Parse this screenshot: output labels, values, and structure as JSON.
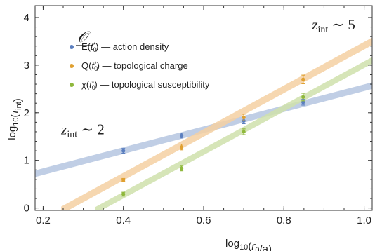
{
  "chart_data": {
    "type": "scatter",
    "xlabel": "log10(r0/a)",
    "ylabel": "log10(τint)",
    "xlim": [
      0.18,
      1.02
    ],
    "ylim": [
      -0.05,
      4.25
    ],
    "xticks": [
      0.2,
      0.4,
      0.6,
      0.8,
      1.0
    ],
    "xtick_labels": [
      "0.2",
      "0.4",
      "0.6",
      "0.8",
      "1.0"
    ],
    "yticks": [
      0,
      1,
      2,
      3,
      4
    ],
    "ytick_labels": [
      "0",
      "1",
      "2",
      "3",
      "4"
    ],
    "grid": false,
    "legend_title": "𝒪",
    "legend_placement": "top-left",
    "annotations": [
      {
        "text": "z_int ∼ 2",
        "x": 0.245,
        "y": 1.55
      },
      {
        "text": "z_int ∼ 5",
        "x": 0.87,
        "y": 3.75
      }
    ],
    "series": [
      {
        "name": "E(t0*) — action density",
        "color": "#5b7fbf",
        "band_color": "#b5c6e0",
        "points": [
          {
            "x": 0.4,
            "y": 1.2,
            "err": 0.05
          },
          {
            "x": 0.545,
            "y": 1.52,
            "err": 0.05
          },
          {
            "x": 0.7,
            "y": 1.83,
            "err": 0.06
          },
          {
            "x": 0.848,
            "y": 2.22,
            "err": 0.06
          }
        ],
        "fit": {
          "x0": 0.18,
          "y0": 0.72,
          "x1": 1.02,
          "y1": 2.57,
          "band": 0.07
        }
      },
      {
        "name": "Q(t0*) — topological charge",
        "color": "#e0a030",
        "band_color": "#f4d0a2",
        "points": [
          {
            "x": 0.4,
            "y": 0.59,
            "err": 0.03
          },
          {
            "x": 0.545,
            "y": 1.28,
            "err": 0.06
          },
          {
            "x": 0.7,
            "y": 1.9,
            "err": 0.07
          },
          {
            "x": 0.848,
            "y": 2.7,
            "err": 0.09
          }
        ],
        "fit": {
          "x0": 0.245,
          "y0": -0.05,
          "x1": 1.02,
          "y1": 3.5,
          "band": 0.08
        }
      },
      {
        "name": "χ(t0*) — topological susceptibility",
        "color": "#8fb83c",
        "band_color": "#cfe0ab",
        "points": [
          {
            "x": 0.4,
            "y": 0.29,
            "err": 0.04
          },
          {
            "x": 0.545,
            "y": 0.83,
            "err": 0.05
          },
          {
            "x": 0.7,
            "y": 1.6,
            "err": 0.06
          },
          {
            "x": 0.848,
            "y": 2.33,
            "err": 0.08
          }
        ],
        "fit": {
          "x0": 0.33,
          "y0": -0.05,
          "x1": 1.02,
          "y1": 3.1,
          "band": 0.07
        }
      }
    ]
  }
}
